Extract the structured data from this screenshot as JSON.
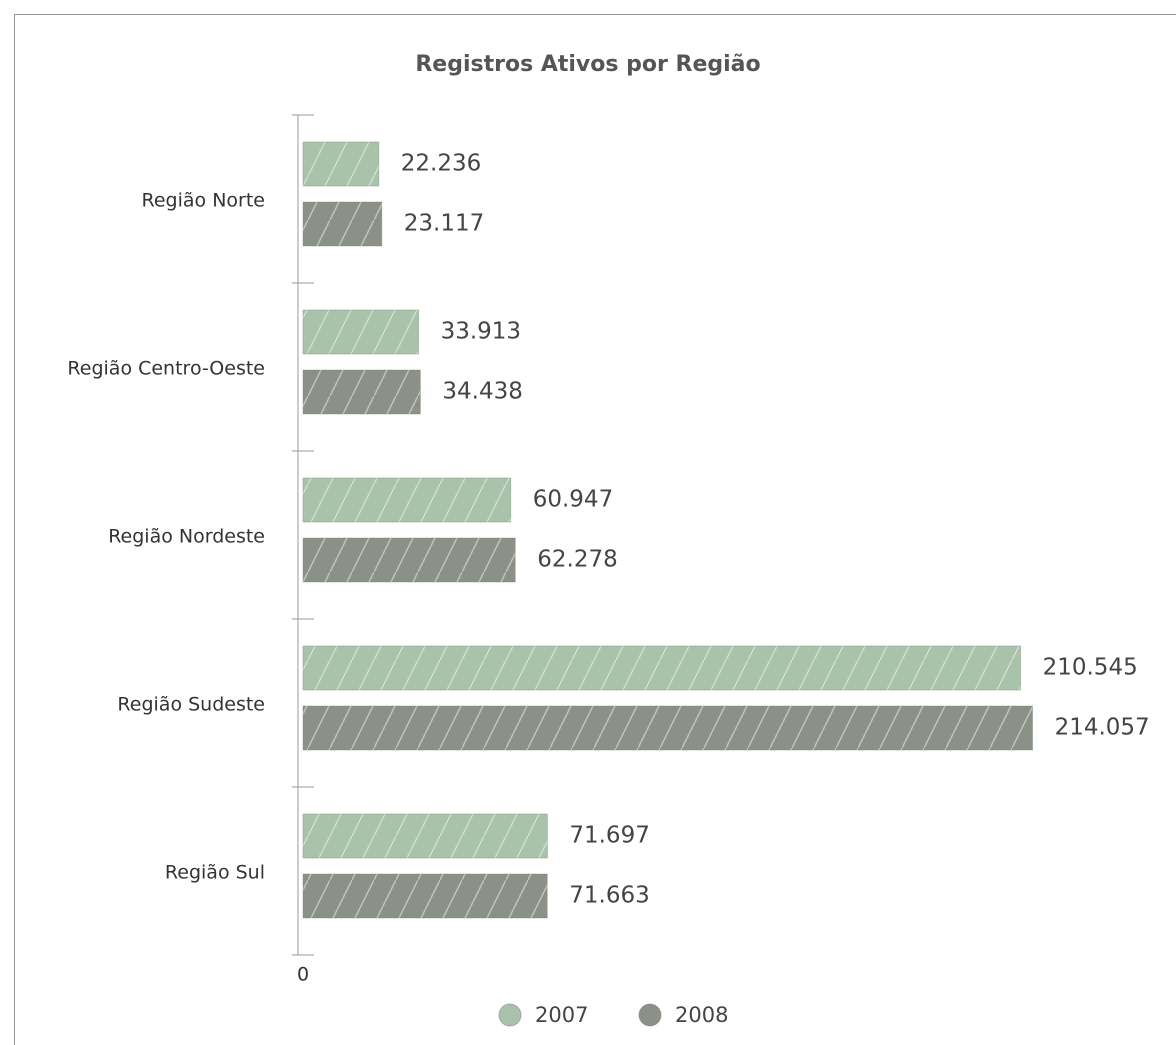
{
  "chart_data": {
    "type": "hbar",
    "title": "Registros Ativos por Região",
    "categories": [
      "Região Norte",
      "Região Centro-Oeste",
      "Região Nordeste",
      "Região Sudeste",
      "Região Sul"
    ],
    "series": [
      {
        "name": "2007",
        "color": "#a9c2aa",
        "values": [
          22236,
          33913,
          60947,
          210545,
          71697
        ],
        "value_labels": [
          "22.236",
          "33.913",
          "60.947",
          "210.545",
          "71.697"
        ]
      },
      {
        "name": "2008",
        "color": "#8b9186",
        "values": [
          23117,
          34438,
          62278,
          214057,
          71663
        ],
        "value_labels": [
          "23.117",
          "34.438",
          "62.278",
          "214.057",
          "71.663"
        ]
      }
    ],
    "xlim": [
      0,
      240000
    ],
    "xticks": [
      0
    ]
  }
}
